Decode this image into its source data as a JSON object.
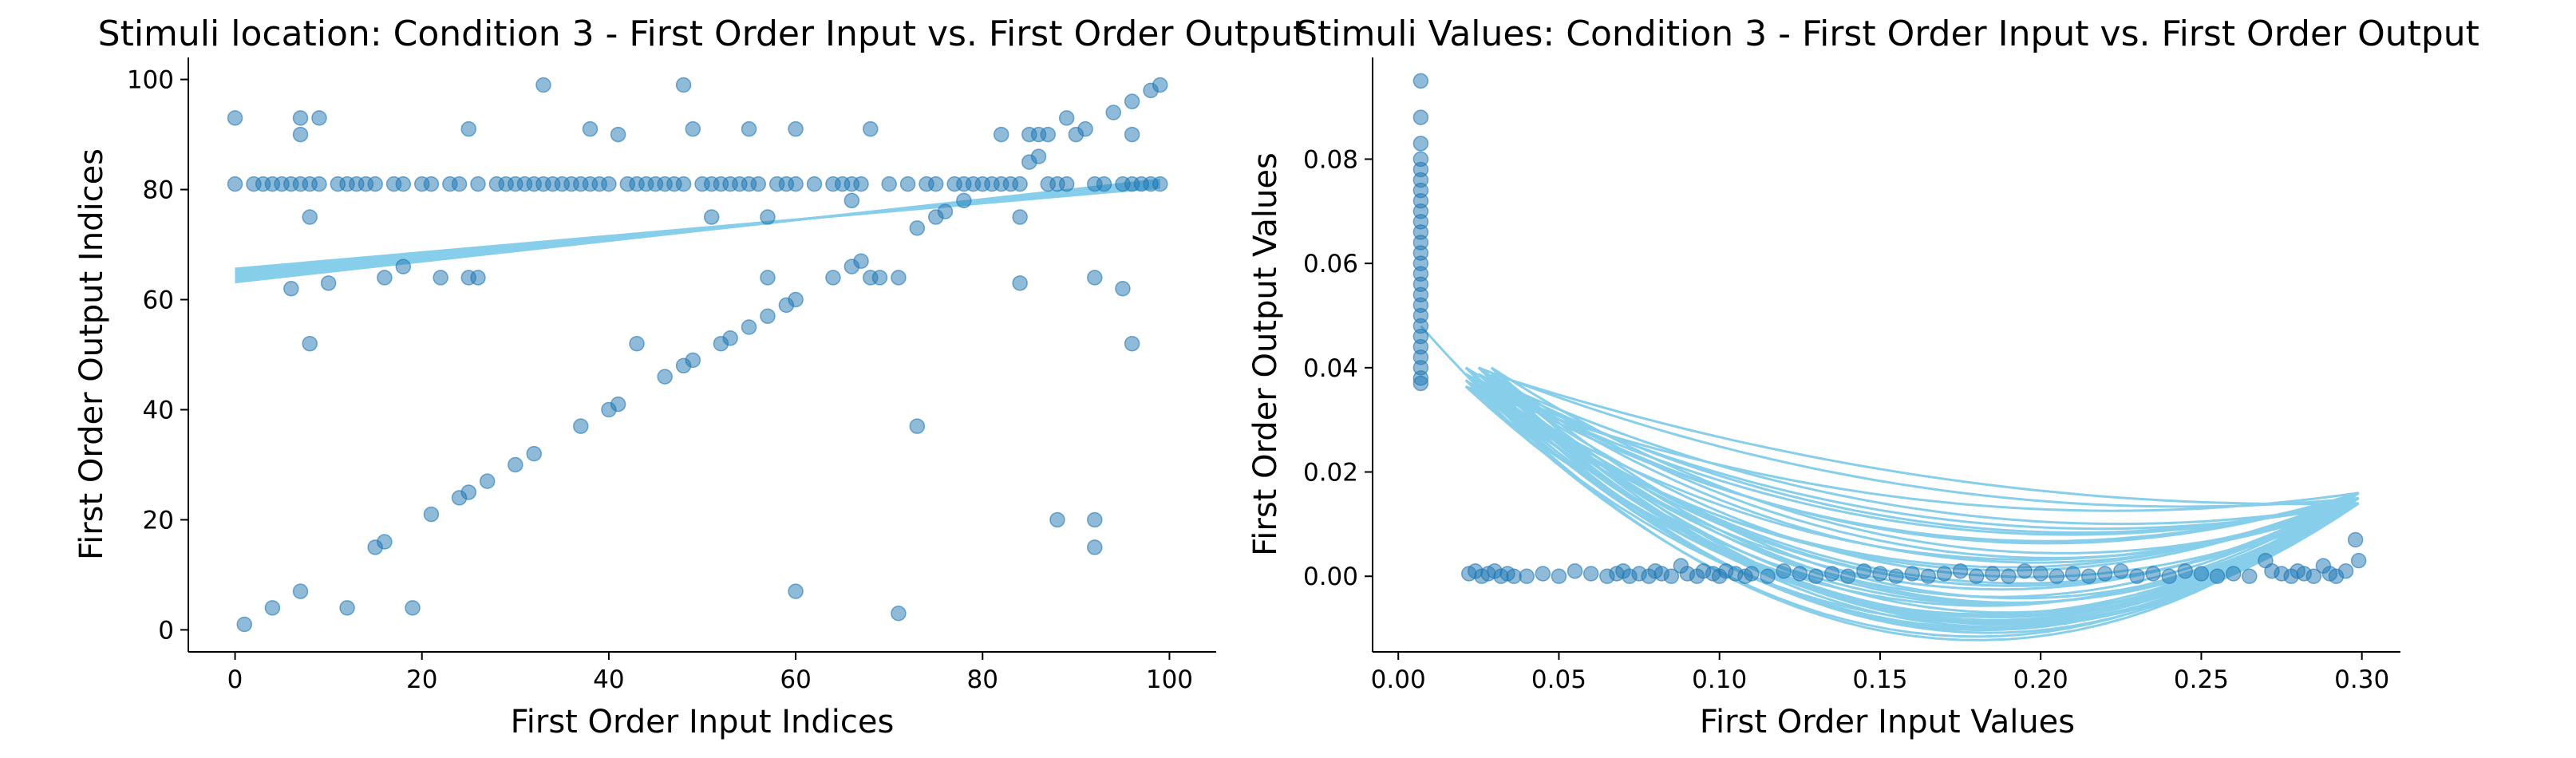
{
  "colors": {
    "points": "#1f77b4",
    "fit": "#87ceeb",
    "axis": "#000000"
  },
  "chart_data": [
    {
      "type": "scatter",
      "title": "Stimuli location: Condition 3 - First Order Input vs. First Order Output",
      "xlabel": "First Order Input Indices",
      "ylabel": "First Order Output Indices",
      "xlim": [
        -5,
        105
      ],
      "ylim": [
        -4,
        104
      ],
      "xticks": [
        0,
        20,
        40,
        60,
        80,
        100
      ],
      "yticks": [
        0,
        20,
        40,
        60,
        80,
        100
      ],
      "grid": false,
      "legend": "none",
      "points": [
        [
          0,
          93
        ],
        [
          0,
          81
        ],
        [
          1,
          1
        ],
        [
          2,
          81
        ],
        [
          3,
          81
        ],
        [
          4,
          4
        ],
        [
          4,
          81
        ],
        [
          5,
          81
        ],
        [
          6,
          62
        ],
        [
          6,
          81
        ],
        [
          7,
          93
        ],
        [
          7,
          90
        ],
        [
          7,
          7
        ],
        [
          7,
          81
        ],
        [
          8,
          75
        ],
        [
          8,
          52
        ],
        [
          8,
          81
        ],
        [
          9,
          93
        ],
        [
          9,
          81
        ],
        [
          10,
          63
        ],
        [
          11,
          81
        ],
        [
          12,
          4
        ],
        [
          12,
          81
        ],
        [
          13,
          81
        ],
        [
          14,
          81
        ],
        [
          15,
          15
        ],
        [
          15,
          81
        ],
        [
          16,
          16
        ],
        [
          16,
          64
        ],
        [
          17,
          81
        ],
        [
          18,
          66
        ],
        [
          18,
          81
        ],
        [
          19,
          4
        ],
        [
          20,
          81
        ],
        [
          21,
          21
        ],
        [
          21,
          81
        ],
        [
          22,
          64
        ],
        [
          23,
          81
        ],
        [
          24,
          24
        ],
        [
          24,
          81
        ],
        [
          25,
          91
        ],
        [
          25,
          25
        ],
        [
          25,
          64
        ],
        [
          26,
          64
        ],
        [
          26,
          81
        ],
        [
          27,
          27
        ],
        [
          28,
          81
        ],
        [
          29,
          81
        ],
        [
          30,
          30
        ],
        [
          30,
          81
        ],
        [
          31,
          81
        ],
        [
          32,
          32
        ],
        [
          32,
          81
        ],
        [
          33,
          99
        ],
        [
          33,
          81
        ],
        [
          34,
          81
        ],
        [
          35,
          81
        ],
        [
          36,
          81
        ],
        [
          37,
          37
        ],
        [
          37,
          81
        ],
        [
          38,
          91
        ],
        [
          38,
          81
        ],
        [
          39,
          81
        ],
        [
          40,
          40
        ],
        [
          40,
          81
        ],
        [
          41,
          41
        ],
        [
          41,
          90
        ],
        [
          42,
          81
        ],
        [
          43,
          52
        ],
        [
          43,
          81
        ],
        [
          44,
          81
        ],
        [
          45,
          81
        ],
        [
          46,
          46
        ],
        [
          46,
          81
        ],
        [
          47,
          81
        ],
        [
          48,
          99
        ],
        [
          48,
          48
        ],
        [
          48,
          81
        ],
        [
          49,
          91
        ],
        [
          49,
          49
        ],
        [
          50,
          81
        ],
        [
          51,
          75
        ],
        [
          51,
          81
        ],
        [
          52,
          52
        ],
        [
          52,
          81
        ],
        [
          53,
          53
        ],
        [
          53,
          81
        ],
        [
          54,
          81
        ],
        [
          55,
          91
        ],
        [
          55,
          55
        ],
        [
          55,
          81
        ],
        [
          56,
          81
        ],
        [
          57,
          57
        ],
        [
          57,
          75
        ],
        [
          57,
          64
        ],
        [
          58,
          81
        ],
        [
          59,
          59
        ],
        [
          59,
          81
        ],
        [
          60,
          91
        ],
        [
          60,
          60
        ],
        [
          60,
          7
        ],
        [
          60,
          81
        ],
        [
          62,
          81
        ],
        [
          64,
          64
        ],
        [
          64,
          81
        ],
        [
          65,
          81
        ],
        [
          66,
          66
        ],
        [
          66,
          78
        ],
        [
          66,
          81
        ],
        [
          67,
          67
        ],
        [
          67,
          81
        ],
        [
          68,
          91
        ],
        [
          68,
          64
        ],
        [
          69,
          64
        ],
        [
          70,
          81
        ],
        [
          71,
          64
        ],
        [
          71,
          3
        ],
        [
          72,
          81
        ],
        [
          73,
          73
        ],
        [
          73,
          37
        ],
        [
          74,
          81
        ],
        [
          75,
          75
        ],
        [
          75,
          81
        ],
        [
          76,
          76
        ],
        [
          77,
          81
        ],
        [
          78,
          78
        ],
        [
          78,
          81
        ],
        [
          79,
          81
        ],
        [
          80,
          81
        ],
        [
          81,
          81
        ],
        [
          82,
          90
        ],
        [
          82,
          81
        ],
        [
          83,
          81
        ],
        [
          84,
          63
        ],
        [
          84,
          75
        ],
        [
          84,
          81
        ],
        [
          85,
          85
        ],
        [
          85,
          90
        ],
        [
          86,
          86
        ],
        [
          86,
          90
        ],
        [
          87,
          90
        ],
        [
          87,
          81
        ],
        [
          88,
          20
        ],
        [
          88,
          81
        ],
        [
          89,
          93
        ],
        [
          89,
          81
        ],
        [
          90,
          90
        ],
        [
          91,
          91
        ],
        [
          92,
          64
        ],
        [
          92,
          20
        ],
        [
          92,
          15
        ],
        [
          92,
          81
        ],
        [
          93,
          81
        ],
        [
          94,
          94
        ],
        [
          95,
          62
        ],
        [
          95,
          81
        ],
        [
          96,
          96
        ],
        [
          96,
          90
        ],
        [
          96,
          52
        ],
        [
          96,
          81
        ],
        [
          97,
          81
        ],
        [
          98,
          98
        ],
        [
          98,
          81
        ],
        [
          99,
          99
        ],
        [
          99,
          81
        ]
      ],
      "fit_line": {
        "x": [
          0,
          99
        ],
        "y": [
          64.5,
          81.0
        ]
      }
    },
    {
      "type": "scatter",
      "title": "Stimuli Values: Condition 3 - First Order Input vs. First Order Output",
      "xlabel": "First Order Input Values",
      "ylabel": "First Order Output Values",
      "xlim": [
        -0.008,
        0.312
      ],
      "ylim": [
        -0.0145,
        0.0995
      ],
      "xticks": [
        0.0,
        0.05,
        0.1,
        0.15,
        0.2,
        0.25,
        0.3
      ],
      "xtick_labels": [
        "0.00",
        "0.05",
        "0.10",
        "0.15",
        "0.20",
        "0.25",
        "0.30"
      ],
      "yticks": [
        0.0,
        0.02,
        0.04,
        0.06,
        0.08
      ],
      "ytick_labels": [
        "0.00",
        "0.02",
        "0.04",
        "0.06",
        "0.08"
      ],
      "grid": false,
      "legend": "none",
      "vertical_cluster": {
        "x": 0.007,
        "y": [
          0.095,
          0.088,
          0.083,
          0.08,
          0.078,
          0.076,
          0.074,
          0.072,
          0.07,
          0.068,
          0.066,
          0.064,
          0.062,
          0.06,
          0.058,
          0.056,
          0.054,
          0.052,
          0.05,
          0.048,
          0.046,
          0.044,
          0.042,
          0.04,
          0.038,
          0.037
        ]
      },
      "bottom_points": {
        "x": [
          0.022,
          0.024,
          0.026,
          0.028,
          0.03,
          0.032,
          0.034,
          0.036,
          0.04,
          0.045,
          0.05,
          0.055,
          0.06,
          0.065,
          0.068,
          0.07,
          0.072,
          0.075,
          0.078,
          0.08,
          0.082,
          0.085,
          0.088,
          0.09,
          0.093,
          0.095,
          0.098,
          0.1,
          0.102,
          0.105,
          0.108,
          0.11,
          0.115,
          0.12,
          0.125,
          0.13,
          0.135,
          0.14,
          0.145,
          0.15,
          0.155,
          0.16,
          0.165,
          0.17,
          0.175,
          0.18,
          0.185,
          0.19,
          0.195,
          0.2,
          0.205,
          0.21,
          0.215,
          0.22,
          0.225,
          0.23,
          0.235,
          0.24,
          0.245,
          0.25,
          0.255,
          0.26,
          0.265,
          0.27,
          0.272,
          0.275,
          0.278,
          0.28,
          0.282,
          0.285,
          0.288,
          0.29,
          0.292,
          0.295,
          0.298,
          0.299
        ],
        "y": [
          0.0005,
          0.001,
          0.0,
          0.0005,
          0.001,
          0.0,
          0.0005,
          0.0,
          0.0,
          0.0005,
          0.0,
          0.001,
          0.0005,
          0.0,
          0.0005,
          0.001,
          0.0,
          0.0005,
          0.0,
          0.001,
          0.0005,
          0.0,
          0.002,
          0.0005,
          0.0,
          0.001,
          0.0005,
          0.0,
          0.001,
          0.0005,
          0.0,
          0.0005,
          0.0,
          0.001,
          0.0005,
          0.0,
          0.0005,
          0.0,
          0.001,
          0.0005,
          0.0,
          0.0005,
          0.0,
          0.0005,
          0.001,
          0.0,
          0.0005,
          0.0,
          0.001,
          0.0005,
          0.0,
          0.0005,
          0.0,
          0.0005,
          0.001,
          0.0,
          0.0005,
          0.0,
          0.001,
          0.0005,
          0.0,
          0.0005,
          0.0,
          0.003,
          0.001,
          0.0005,
          0.0,
          0.001,
          0.0005,
          0.0,
          0.002,
          0.0005,
          0.0,
          0.001,
          0.007,
          0.003
        ]
      },
      "fit_curves": {
        "left_end": [
          0.007,
          0.048
        ],
        "right_end": [
          0.299,
          0.016
        ],
        "min_x_range": [
          0.14,
          0.22
        ],
        "min_y": -0.009,
        "count": 42
      }
    }
  ]
}
